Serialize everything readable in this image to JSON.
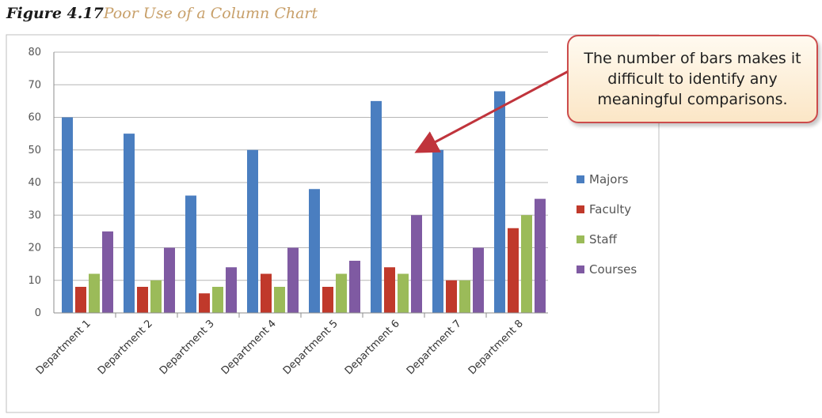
{
  "figure": {
    "number": "Figure 4.17",
    "title": "Poor Use of a Column Chart"
  },
  "callout": {
    "text": "The number of bars makes it difficult to identify any meaningful comparisons."
  },
  "colors": {
    "majors": "#4a7ec0",
    "faculty": "#c0392b",
    "staff": "#9bbb59",
    "courses": "#7f5aa2",
    "arrow": "#c0343c"
  },
  "chart_data": {
    "type": "bar",
    "categories": [
      "Department 1",
      "Department 2",
      "Department 3",
      "Department 4",
      "Department 5",
      "Department 6",
      "Department 7",
      "Department 8"
    ],
    "series": [
      {
        "name": "Majors",
        "values": [
          60,
          55,
          36,
          50,
          38,
          65,
          50,
          68
        ]
      },
      {
        "name": "Faculty",
        "values": [
          8,
          8,
          6,
          12,
          8,
          14,
          10,
          26
        ]
      },
      {
        "name": "Staff",
        "values": [
          12,
          10,
          8,
          8,
          12,
          12,
          10,
          30
        ]
      },
      {
        "name": "Courses",
        "values": [
          25,
          20,
          14,
          20,
          16,
          30,
          20,
          35
        ]
      }
    ],
    "yticks": [
      "0",
      "10",
      "20",
      "30",
      "40",
      "50",
      "60",
      "70",
      "80"
    ],
    "ylim": [
      0,
      80
    ],
    "grid": true,
    "legend": "right"
  }
}
